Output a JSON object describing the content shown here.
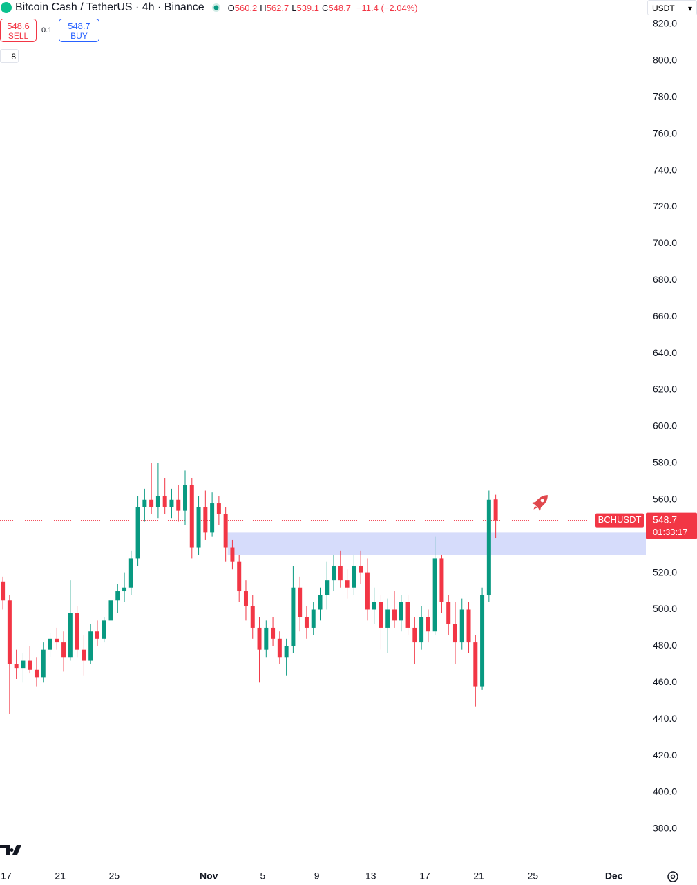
{
  "header": {
    "title": "Bitcoin Cash / TetherUS · 4h · Binance",
    "ohlc": [
      {
        "label": "O",
        "value": "560.2"
      },
      {
        "label": "H",
        "value": "562.7"
      },
      {
        "label": "L",
        "value": "539.1"
      },
      {
        "label": "C",
        "value": "548.7"
      }
    ],
    "change": "−11.4 (−2.04%)",
    "sell": {
      "price": "548.6",
      "label": "SELL"
    },
    "spread": "0.1",
    "buy": {
      "price": "548.7",
      "label": "BUY"
    },
    "indicators": "8",
    "currency": "USDT"
  },
  "chart_data": {
    "type": "candlestick",
    "up_color": "#089981",
    "down_color": "#f23645",
    "x": [
      16.75,
      17.25,
      17.75,
      18.25,
      18.75,
      19.25,
      19.75,
      20.25,
      20.75,
      21.25,
      21.75,
      22.25,
      22.75,
      23.25,
      23.75,
      24.25,
      24.75,
      25.25,
      25.75,
      26.25,
      26.75,
      27.25,
      27.75,
      28.25,
      28.75,
      29.25,
      29.75,
      30.25,
      30.75,
      31.25,
      31.75,
      32.25,
      32.75,
      33.25,
      33.75,
      34.25,
      34.75,
      35.25,
      35.75,
      36.25,
      36.75,
      37.25,
      37.75,
      38.25,
      38.75,
      39.25,
      39.75,
      40.25,
      40.75,
      41.25,
      41.75,
      42.25,
      42.75,
      43.25,
      43.75,
      44.25,
      44.75,
      45.25,
      45.75,
      46.25,
      46.75,
      47.25,
      47.75,
      48.25,
      48.75,
      49.25,
      49.75,
      50.25,
      50.75,
      51.25,
      51.75,
      52.25,
      52.75,
      53.25
    ],
    "open": [
      515,
      505,
      470,
      468,
      472,
      467,
      463,
      478,
      484,
      482,
      474,
      498,
      478,
      472,
      488,
      484,
      494,
      505,
      510,
      512,
      528,
      556,
      560,
      556,
      562,
      556,
      560,
      554,
      568,
      534,
      556,
      542,
      558,
      552,
      534,
      526,
      510,
      502,
      490,
      478,
      490,
      484,
      474,
      480,
      512,
      496,
      490,
      500,
      508,
      516,
      524,
      516,
      512,
      524,
      520,
      500,
      504,
      490,
      500,
      494,
      504,
      490,
      482,
      496,
      488,
      528,
      504,
      492,
      482,
      500,
      482,
      458,
      508,
      560.2
    ],
    "high": [
      518,
      508,
      478,
      476,
      480,
      474,
      482,
      487,
      490,
      488,
      516,
      502,
      486,
      492,
      494,
      496,
      512,
      514,
      520,
      532,
      562,
      566,
      580,
      580,
      572,
      566,
      568,
      576,
      572,
      562,
      565,
      564,
      562,
      556,
      538,
      530,
      516,
      508,
      496,
      494,
      496,
      488,
      484,
      524,
      518,
      502,
      504,
      512,
      526,
      530,
      532,
      522,
      530,
      532,
      528,
      512,
      508,
      506,
      510,
      508,
      508,
      496,
      502,
      500,
      540,
      530,
      508,
      504,
      506,
      504,
      486,
      512,
      565,
      562.7
    ],
    "low": [
      500,
      443,
      462,
      460,
      465,
      458,
      460,
      474,
      478,
      466,
      472,
      474,
      464,
      470,
      480,
      482,
      490,
      498,
      504,
      508,
      524,
      548,
      552,
      550,
      552,
      550,
      548,
      546,
      528,
      530,
      538,
      540,
      546,
      526,
      522,
      504,
      494,
      484,
      460,
      474,
      480,
      470,
      464,
      476,
      488,
      484,
      486,
      494,
      500,
      510,
      512,
      506,
      508,
      514,
      494,
      492,
      478,
      476,
      490,
      488,
      486,
      470,
      478,
      482,
      486,
      498,
      486,
      470,
      478,
      476,
      447,
      456,
      504,
      539.1
    ],
    "close": [
      505,
      470,
      468,
      472,
      467,
      463,
      478,
      484,
      482,
      474,
      498,
      478,
      472,
      488,
      484,
      494,
      505,
      510,
      512,
      528,
      556,
      560,
      556,
      562,
      556,
      560,
      554,
      568,
      534,
      556,
      542,
      558,
      552,
      534,
      526,
      510,
      502,
      490,
      478,
      490,
      484,
      474,
      480,
      512,
      496,
      490,
      500,
      508,
      516,
      524,
      516,
      512,
      524,
      520,
      500,
      504,
      490,
      500,
      494,
      504,
      490,
      482,
      496,
      488,
      528,
      504,
      492,
      482,
      500,
      482,
      458,
      508,
      560,
      548.7
    ],
    "xlim": [
      16.54,
      64.37
    ],
    "xticks": [
      17,
      21,
      25,
      {
        "value": 32,
        "label": "Nov"
      },
      {
        "value": 36,
        "label": "5"
      },
      {
        "value": 40,
        "label": "9"
      },
      {
        "value": 44,
        "label": "13"
      },
      {
        "value": 48,
        "label": "17"
      },
      {
        "value": 52,
        "label": "21"
      },
      {
        "value": 56,
        "label": "25"
      },
      {
        "value": 62,
        "label": "Dec"
      }
    ],
    "ylim": [
      360.7,
      833.2
    ],
    "yticks": [
      {
        "value": 380,
        "label": "380.0"
      },
      {
        "value": 400,
        "label": "400.0"
      },
      {
        "value": 420,
        "label": "420.0"
      },
      {
        "value": 440,
        "label": "440.0"
      },
      {
        "value": 460,
        "label": "460.0"
      },
      {
        "value": 480,
        "label": "480.0"
      },
      {
        "value": 500,
        "label": "500.0"
      },
      {
        "value": 520,
        "label": "520.0"
      },
      {
        "value": 540,
        "label": "540.0"
      },
      {
        "value": 560,
        "label": "560.0"
      },
      {
        "value": 580,
        "label": "580.0"
      },
      {
        "value": 600,
        "label": "600.0"
      },
      {
        "value": 620,
        "label": "620.0"
      },
      {
        "value": 640,
        "label": "640.0"
      },
      {
        "value": 660,
        "label": "660.0"
      },
      {
        "value": 680,
        "label": "680.0"
      },
      {
        "value": 700,
        "label": "700.0"
      },
      {
        "value": 720,
        "label": "720.0"
      },
      {
        "value": 740,
        "label": "740.0"
      },
      {
        "value": 760,
        "label": "760.0"
      },
      {
        "value": 780,
        "label": "780.0"
      },
      {
        "value": 800,
        "label": "800.0"
      },
      {
        "value": 820,
        "label": "820.0"
      }
    ],
    "zone": {
      "x0": 33.4,
      "low": 530,
      "high": 542,
      "color": "#d6dcfb"
    },
    "last_price": {
      "name": "BCHUSDT",
      "value": 548.7,
      "countdown": "01:33:17",
      "color": "#f23645"
    }
  }
}
